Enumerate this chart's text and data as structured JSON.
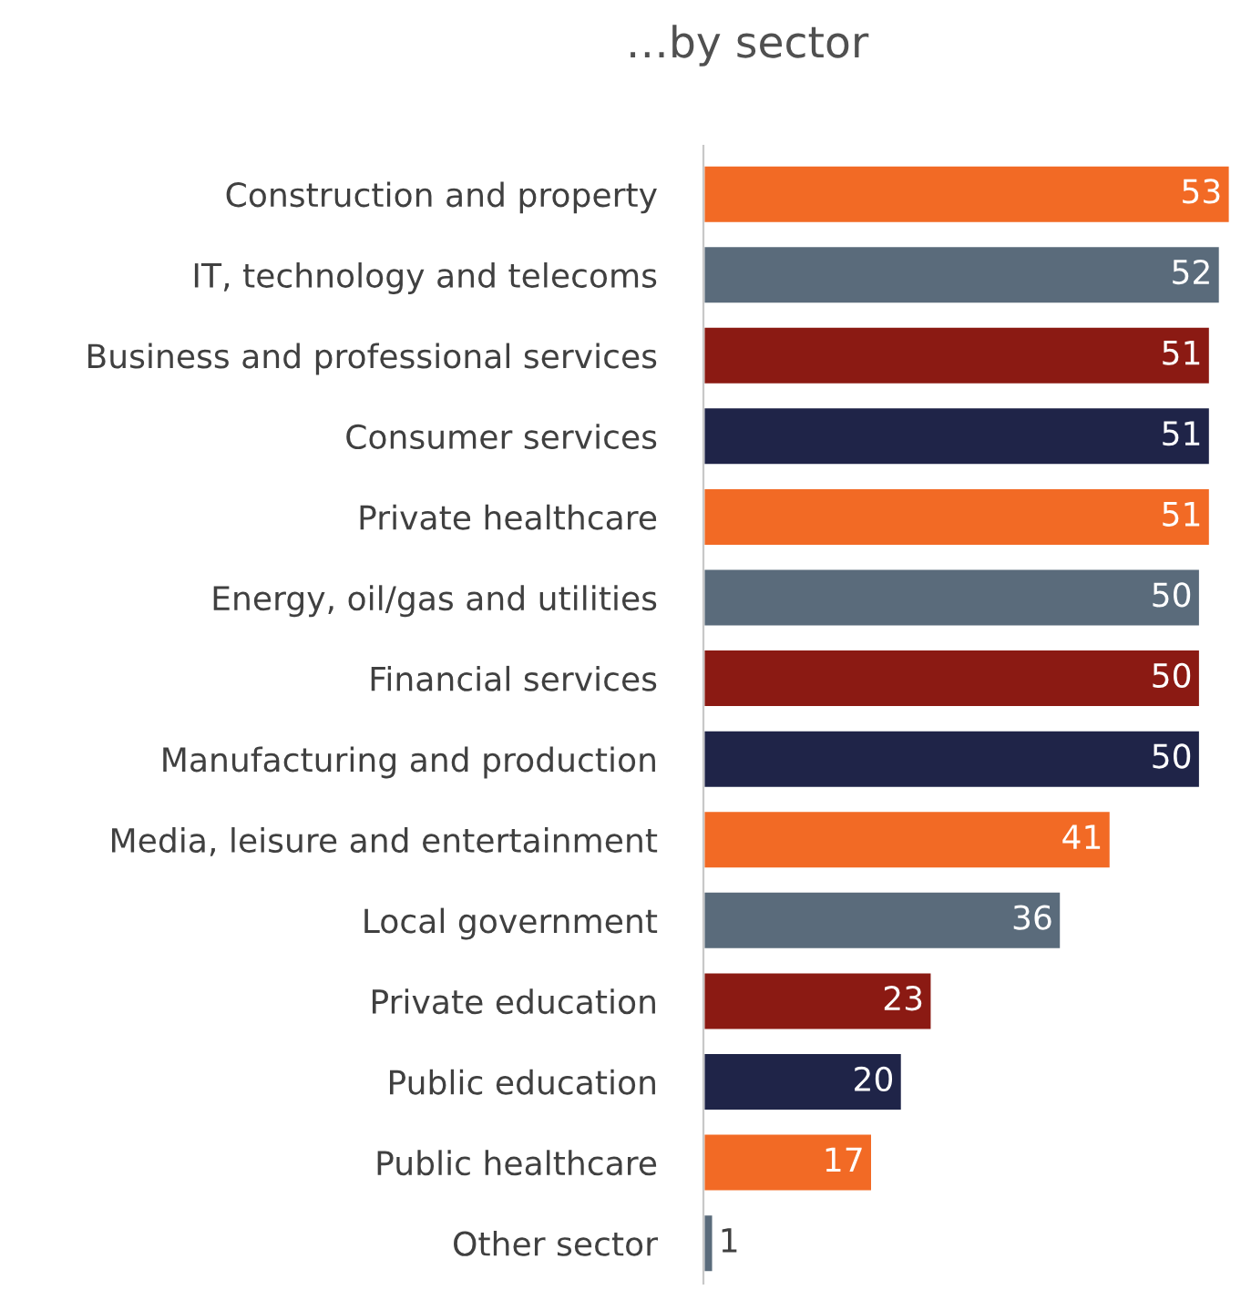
{
  "chart_data": {
    "type": "bar",
    "orientation": "horizontal",
    "title": "…by sector",
    "categories": [
      "Construction and property",
      "IT, technology and telecoms",
      "Business and professional services",
      "Consumer services",
      "Private healthcare",
      "Energy, oil/gas and utilities",
      "Financial services",
      "Manufacturing and production",
      "Media, leisure and entertainment",
      "Local government",
      "Private education",
      "Public education",
      "Public healthcare",
      "Other sector"
    ],
    "values": [
      53,
      52,
      51,
      51,
      51,
      50,
      50,
      50,
      41,
      36,
      23,
      20,
      17,
      1
    ],
    "colors": [
      "#f26a25",
      "#5a6b7b",
      "#8b1a13",
      "#1f2448",
      "#f26a25",
      "#5a6b7b",
      "#8b1a13",
      "#1f2448",
      "#f26a25",
      "#5a6b7b",
      "#8b1a13",
      "#1f2448",
      "#f26a25",
      "#5a6b7b"
    ],
    "data_labels": true,
    "grid": false,
    "legend": false
  }
}
